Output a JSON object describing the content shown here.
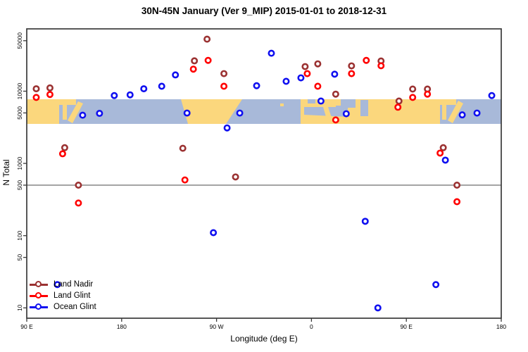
{
  "title": "30N-45N January (Ver 9_MIP)   2015-01-01 to 2018-12-31",
  "chart_data": {
    "type": "scatter",
    "title": "30N-45N January (Ver 9_MIP)   2015-01-01 to 2018-12-31",
    "xlabel": "Longitude (deg E)",
    "ylabel": "N Total",
    "x_axis": {
      "range": [
        90,
        540
      ],
      "ticks": [
        90,
        180,
        270,
        360,
        450,
        540
      ],
      "tick_labels": [
        "90 E",
        "180",
        "90 W",
        "0",
        "90 E",
        "180"
      ],
      "note": "longitude axis wraps eastward from 90E around the globe to 180"
    },
    "y_axis": {
      "scale": "log10",
      "range": [
        9,
        60000
      ],
      "ticks": [
        10,
        50,
        100,
        500,
        1000,
        5000,
        10000,
        50000
      ],
      "tick_labels": [
        "10",
        "50",
        "100",
        "500",
        "1000",
        "5000",
        "10000",
        "50000"
      ]
    },
    "reference_line_y": 500,
    "map_band": {
      "description": "world map strip for 30N-45N drawn across plot",
      "n_range": [
        3525,
        7730
      ],
      "land_color": "#FBD77D",
      "ocean_color": "#A8B9D9"
    },
    "grid": false,
    "legend_position": "bottom-left",
    "series": [
      {
        "name": "Land Nadir",
        "color": "#9B3232",
        "points": [
          [
            99,
            10800
          ],
          [
            112,
            11100
          ],
          [
            126,
            1650
          ],
          [
            139,
            500
          ],
          [
            238,
            1620
          ],
          [
            249,
            26300
          ],
          [
            261,
            52500
          ],
          [
            277,
            17500
          ],
          [
            288,
            650
          ],
          [
            354,
            21900
          ],
          [
            366,
            23900
          ],
          [
            383,
            9100
          ],
          [
            398,
            22400
          ],
          [
            426,
            26200
          ],
          [
            443,
            7300
          ],
          [
            456,
            10700
          ],
          [
            470,
            10700
          ],
          [
            485,
            1650
          ],
          [
            498,
            500
          ]
        ]
      },
      {
        "name": "Land Glint",
        "color": "#FF0000",
        "points": [
          [
            99,
            8200
          ],
          [
            112,
            9000
          ],
          [
            124,
            1360
          ],
          [
            139,
            283
          ],
          [
            240,
            590
          ],
          [
            248,
            20200
          ],
          [
            262,
            26700
          ],
          [
            277,
            11700
          ],
          [
            356,
            17500
          ],
          [
            366,
            11700
          ],
          [
            383,
            4000
          ],
          [
            398,
            17500
          ],
          [
            412,
            26700
          ],
          [
            426,
            22500
          ],
          [
            442,
            6000
          ],
          [
            456,
            8200
          ],
          [
            470,
            9100
          ],
          [
            482,
            1390
          ],
          [
            498,
            295
          ]
        ]
      },
      {
        "name": "Ocean Glint",
        "color": "#1010F0",
        "points": [
          [
            119,
            21
          ],
          [
            143,
            4650
          ],
          [
            159,
            4930
          ],
          [
            173,
            8700
          ],
          [
            188,
            8900
          ],
          [
            201,
            10800
          ],
          [
            218,
            11700
          ],
          [
            231,
            16800
          ],
          [
            242,
            4980
          ],
          [
            267,
            110
          ],
          [
            280,
            3100
          ],
          [
            292,
            4980
          ],
          [
            308,
            11900
          ],
          [
            322,
            33500
          ],
          [
            336,
            13700
          ],
          [
            350,
            15300
          ],
          [
            369,
            7300
          ],
          [
            382,
            17200
          ],
          [
            393,
            4870
          ],
          [
            411,
            158
          ],
          [
            423,
            10
          ],
          [
            478,
            21
          ],
          [
            487,
            1110
          ],
          [
            503,
            4700
          ],
          [
            517,
            4980
          ],
          [
            531,
            8700
          ]
        ]
      }
    ]
  },
  "legend": {
    "items": [
      {
        "label": "Land Nadir",
        "color": "#9B3232"
      },
      {
        "label": "Land Glint",
        "color": "#FF0000"
      },
      {
        "label": "Ocean Glint",
        "color": "#1010F0"
      }
    ]
  }
}
